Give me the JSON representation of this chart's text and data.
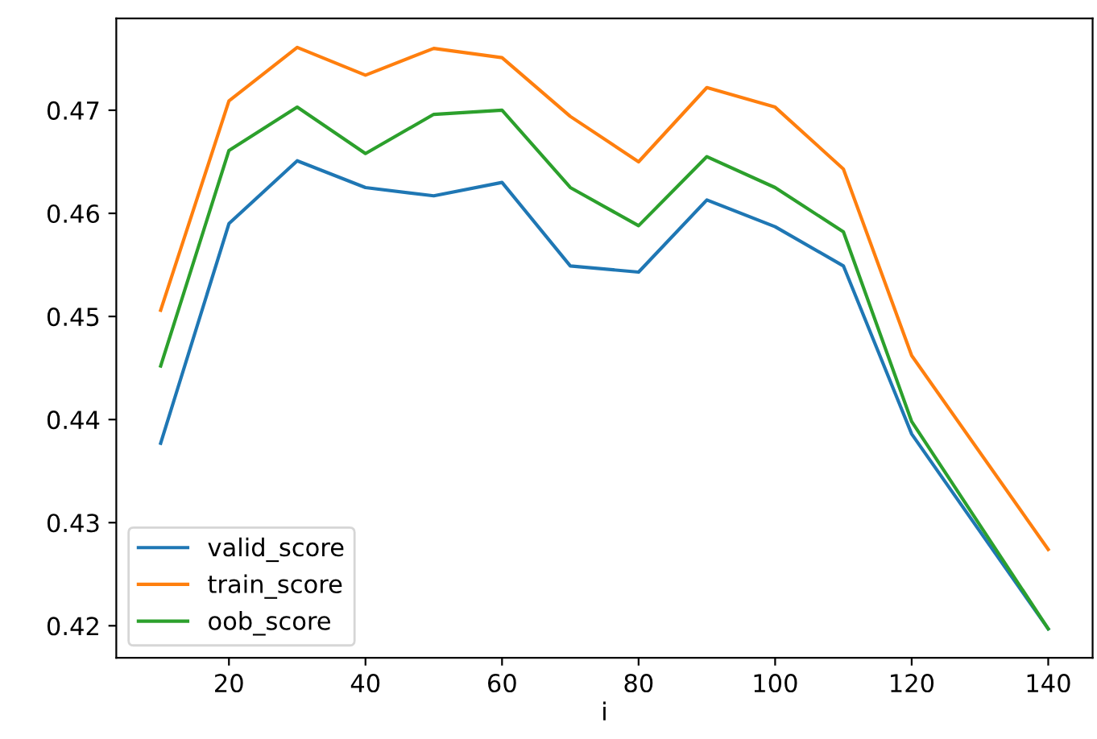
{
  "chart_data": {
    "type": "line",
    "xlabel": "i",
    "x": [
      10,
      20,
      30,
      40,
      50,
      60,
      70,
      80,
      90,
      100,
      110,
      120,
      140
    ],
    "series": [
      {
        "name": "valid_score",
        "color": "#1f77b4",
        "values": [
          0.4377,
          0.459,
          0.4651,
          0.4625,
          0.4617,
          0.463,
          0.4549,
          0.4543,
          0.4613,
          0.4587,
          0.4549,
          0.4386,
          0.4197
        ]
      },
      {
        "name": "train_score",
        "color": "#ff7f0e",
        "values": [
          0.4506,
          0.4709,
          0.4761,
          0.4734,
          0.476,
          0.4751,
          0.4694,
          0.465,
          0.4722,
          0.4703,
          0.4643,
          0.4462,
          0.4274
        ]
      },
      {
        "name": "oob_score",
        "color": "#2ca02c",
        "values": [
          0.4452,
          0.4661,
          0.4703,
          0.4658,
          0.4696,
          0.47,
          0.4625,
          0.4588,
          0.4655,
          0.4625,
          0.4582,
          0.4398,
          0.4197
        ]
      }
    ],
    "xlim": [
      3.5,
      146.5
    ],
    "xticks": [
      20,
      40,
      60,
      80,
      100,
      120,
      140
    ],
    "ylim": [
      0.4169,
      0.4789
    ],
    "yticks": [
      0.42,
      0.43,
      0.44,
      0.45,
      0.46,
      0.47
    ],
    "grid": false,
    "legend": "lower left",
    "marker": "none",
    "line_style": "solid"
  }
}
